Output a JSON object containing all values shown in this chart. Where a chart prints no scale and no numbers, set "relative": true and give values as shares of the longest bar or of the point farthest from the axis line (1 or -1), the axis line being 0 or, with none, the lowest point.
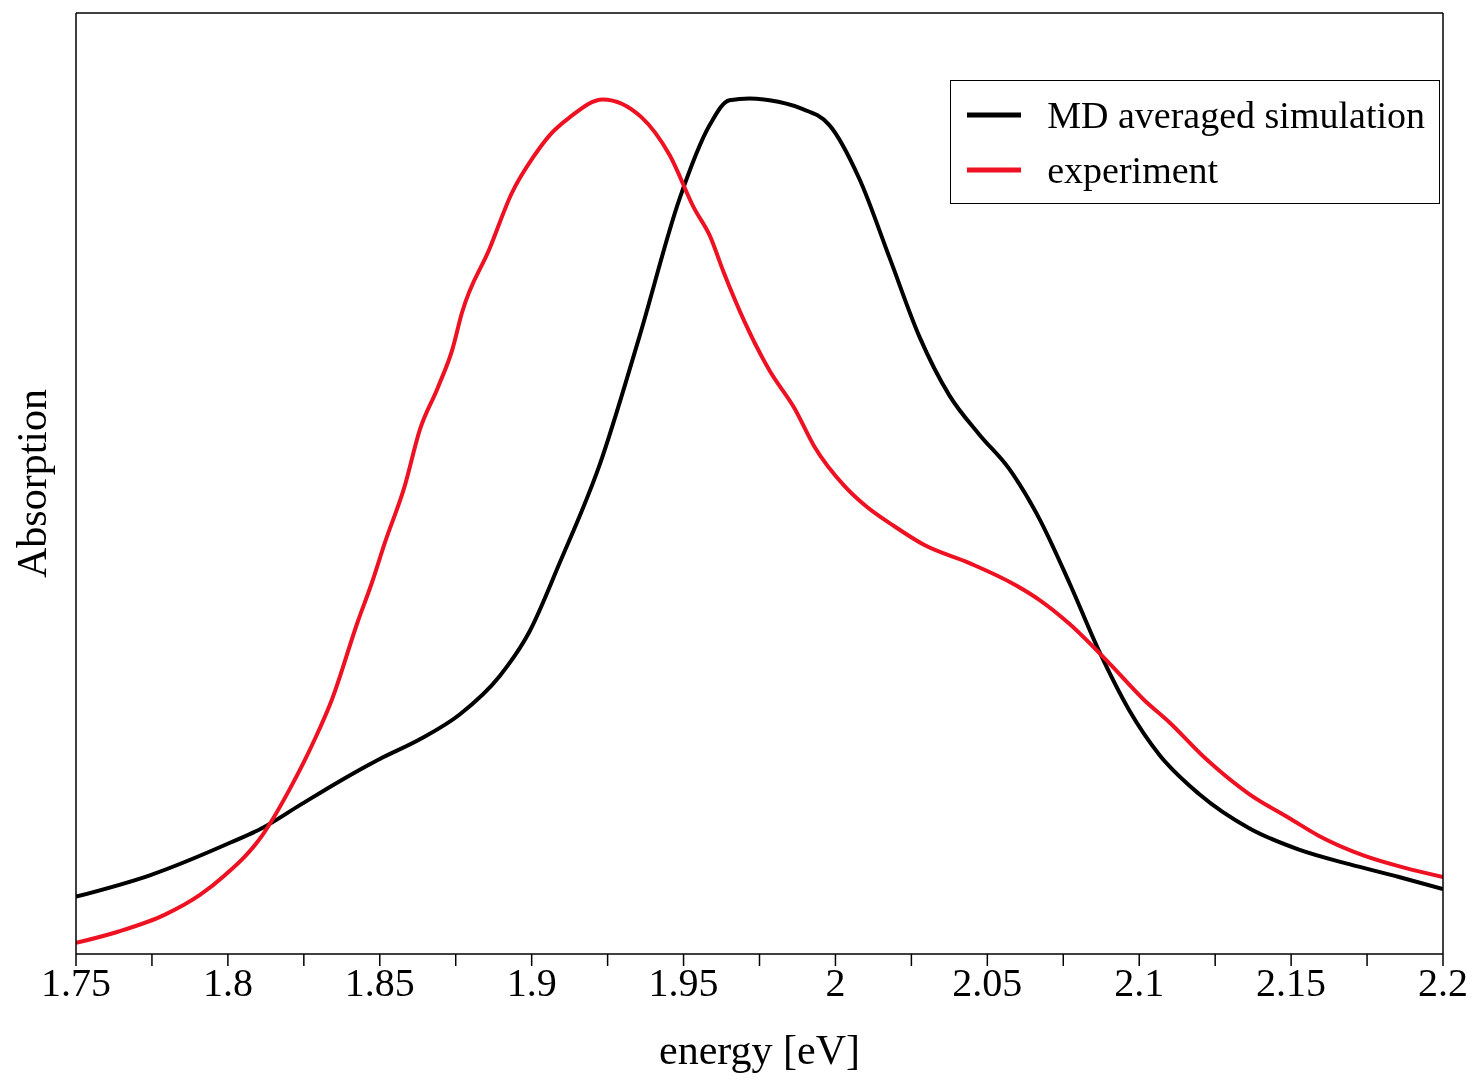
{
  "chart_data": {
    "type": "line",
    "xlabel": "energy [eV]",
    "ylabel": "Absorption",
    "relative": true,
    "xlim": [
      1.75,
      2.2
    ],
    "xticks": [
      1.75,
      {
        "value": 1.775,
        "label": null
      },
      1.8,
      {
        "value": 1.825,
        "label": null
      },
      1.85,
      {
        "value": 1.875,
        "label": null
      },
      1.9,
      {
        "value": 1.925,
        "label": null
      },
      1.95,
      {
        "value": 1.975,
        "label": null
      },
      2,
      {
        "value": 2.025,
        "label": null
      },
      2.05,
      {
        "value": 2.075,
        "label": null
      },
      2.1,
      {
        "value": 2.125,
        "label": null
      },
      2.15,
      {
        "value": 2.175,
        "label": null
      },
      2.2
    ],
    "grid": false,
    "legend": "top right",
    "marker": "none",
    "line_style": "solid",
    "series": [
      {
        "name": "MD averaged simulation",
        "color": "#000000",
        "x": [
          1.75,
          1.7743,
          1.8007,
          1.8112,
          1.8237,
          1.8368,
          1.85,
          1.8632,
          1.8763,
          1.8895,
          1.8993,
          1.9092,
          1.9224,
          1.9355,
          1.9487,
          1.9586,
          1.9651,
          1.9717,
          1.9783,
          1.9882,
          1.998,
          2.0079,
          2.0178,
          2.0276,
          2.0375,
          2.0474,
          2.0572,
          2.0671,
          2.077,
          2.0868,
          2.0967,
          2.1066,
          2.1197,
          2.1362,
          2.1526,
          2.1691,
          2.1855,
          2.2
        ],
        "values": [
          0.067,
          0.092,
          0.13,
          0.147,
          0.174,
          0.202,
          0.228,
          0.251,
          0.28,
          0.325,
          0.377,
          0.457,
          0.572,
          0.722,
          0.883,
          0.969,
          0.998,
          1,
          0.998,
          0.989,
          0.969,
          0.906,
          0.814,
          0.722,
          0.653,
          0.607,
          0.567,
          0.509,
          0.434,
          0.354,
          0.285,
          0.233,
          0.187,
          0.147,
          0.122,
          0.105,
          0.09,
          0.076
        ]
      },
      {
        "name": "experiment",
        "color": "#ee1122",
        "x": [
          1.75,
          1.7638,
          1.7793,
          1.7908,
          1.799,
          1.8112,
          1.8204,
          1.8286,
          1.8342,
          1.8428,
          1.8474,
          1.8516,
          1.8582,
          1.8632,
          1.8691,
          1.874,
          1.877,
          1.8862,
          1.8934,
          1.901,
          1.9059,
          1.9125,
          1.9234,
          1.9362,
          1.9454,
          1.9536,
          1.9586,
          1.9632,
          1.9701,
          1.9783,
          1.9865,
          1.9931,
          2.003,
          2.0099,
          2.0194,
          2.0293,
          2.0441,
          2.0589,
          2.0671,
          2.077,
          2.0901,
          2.1016,
          2.1099,
          2.1214,
          2.1362,
          2.1493,
          2.1592,
          2.174,
          2.1872,
          2.2
        ],
        "values": [
          0.013,
          0.026,
          0.046,
          0.069,
          0.092,
          0.138,
          0.193,
          0.251,
          0.297,
          0.389,
          0.434,
          0.48,
          0.547,
          0.613,
          0.662,
          0.708,
          0.749,
          0.825,
          0.889,
          0.934,
          0.957,
          0.978,
          0.999,
          0.978,
          0.934,
          0.871,
          0.84,
          0.797,
          0.739,
          0.682,
          0.638,
          0.593,
          0.547,
          0.524,
          0.5,
          0.478,
          0.457,
          0.432,
          0.414,
          0.386,
          0.34,
          0.297,
          0.271,
          0.23,
          0.187,
          0.159,
          0.138,
          0.115,
          0.101,
          0.09
        ]
      }
    ]
  }
}
